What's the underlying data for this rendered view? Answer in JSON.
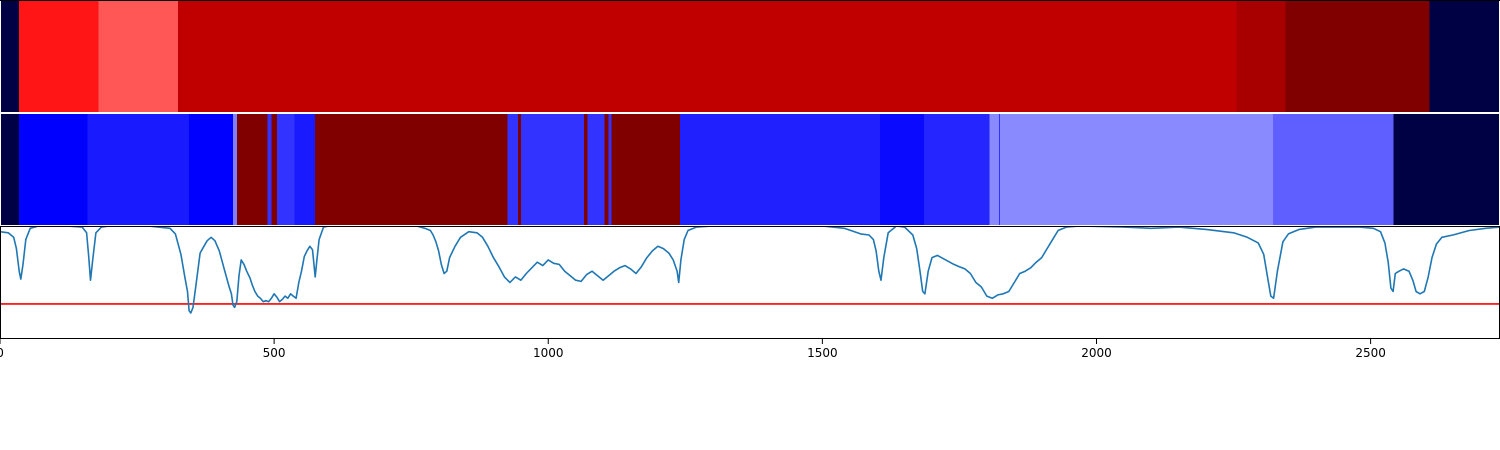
{
  "chart_data": {
    "type": "area",
    "x_range": [
      0,
      2736
    ],
    "x_ticks": [
      "0",
      "500",
      "1000",
      "1500",
      "2000",
      "2500"
    ],
    "colors": {
      "pad": "#000045",
      "threshold": "#ff0000",
      "line": "#1f77b4",
      "frame": "#000000"
    },
    "tracks": [
      {
        "segments": [
          {
            "start": 0,
            "end": 35,
            "color": "#000045"
          },
          {
            "start": 35,
            "end": 180,
            "color": "#ff1515"
          },
          {
            "start": 180,
            "end": 325,
            "color": "#ff5656"
          },
          {
            "start": 325,
            "end": 2255,
            "color": "#c00000"
          },
          {
            "start": 2255,
            "end": 2345,
            "color": "#a80000"
          },
          {
            "start": 2345,
            "end": 2607,
            "color": "#800000"
          },
          {
            "start": 2607,
            "end": 2736,
            "color": "#000045"
          }
        ]
      },
      {
        "segments": [
          {
            "start": 0,
            "end": 35,
            "color": "#000045"
          },
          {
            "start": 35,
            "end": 160,
            "color": "#0000ff"
          },
          {
            "start": 160,
            "end": 345,
            "color": "#1a1aff"
          },
          {
            "start": 345,
            "end": 425,
            "color": "#0000ff"
          },
          {
            "start": 425,
            "end": 432,
            "color": "#8080ff"
          },
          {
            "start": 432,
            "end": 488,
            "color": "#800000"
          },
          {
            "start": 488,
            "end": 495,
            "color": "#3333ff"
          },
          {
            "start": 495,
            "end": 505,
            "color": "#800000"
          },
          {
            "start": 505,
            "end": 537,
            "color": "#3333ff"
          },
          {
            "start": 537,
            "end": 575,
            "color": "#1a1aff"
          },
          {
            "start": 575,
            "end": 926,
            "color": "#800000"
          },
          {
            "start": 926,
            "end": 945,
            "color": "#3333ff"
          },
          {
            "start": 945,
            "end": 950,
            "color": "#800000"
          },
          {
            "start": 950,
            "end": 1065,
            "color": "#3333ff"
          },
          {
            "start": 1065,
            "end": 1072,
            "color": "#800000"
          },
          {
            "start": 1072,
            "end": 1103,
            "color": "#3333ff"
          },
          {
            "start": 1103,
            "end": 1110,
            "color": "#800000"
          },
          {
            "start": 1110,
            "end": 1115,
            "color": "#3333ff"
          },
          {
            "start": 1115,
            "end": 1240,
            "color": "#800000"
          },
          {
            "start": 1240,
            "end": 1605,
            "color": "#2020ff"
          },
          {
            "start": 1605,
            "end": 1685,
            "color": "#0a0aff"
          },
          {
            "start": 1685,
            "end": 1805,
            "color": "#2525ff"
          },
          {
            "start": 1805,
            "end": 1822,
            "color": "#8a8aff"
          },
          {
            "start": 1822,
            "end": 1824,
            "color": "#3333ff"
          },
          {
            "start": 1824,
            "end": 2322,
            "color": "#8a8aff"
          },
          {
            "start": 2322,
            "end": 2542,
            "color": "#5f5fff"
          },
          {
            "start": 2542,
            "end": 2736,
            "color": "#000045"
          }
        ]
      }
    ],
    "signal": {
      "y_range": [
        0,
        1
      ],
      "threshold": 0.31,
      "points": [
        [
          0,
          0.95
        ],
        [
          15,
          0.94
        ],
        [
          25,
          0.9
        ],
        [
          30,
          0.8
        ],
        [
          35,
          0.6
        ],
        [
          38,
          0.53
        ],
        [
          42,
          0.66
        ],
        [
          47,
          0.88
        ],
        [
          55,
          0.98
        ],
        [
          70,
          1.0
        ],
        [
          120,
          1.0
        ],
        [
          150,
          0.99
        ],
        [
          158,
          0.94
        ],
        [
          162,
          0.72
        ],
        [
          165,
          0.52
        ],
        [
          169,
          0.7
        ],
        [
          175,
          0.94
        ],
        [
          185,
          0.99
        ],
        [
          200,
          1.0
        ],
        [
          270,
          1.0
        ],
        [
          310,
          0.98
        ],
        [
          320,
          0.93
        ],
        [
          330,
          0.75
        ],
        [
          337,
          0.55
        ],
        [
          342,
          0.42
        ],
        [
          345,
          0.25
        ],
        [
          348,
          0.23
        ],
        [
          352,
          0.28
        ],
        [
          358,
          0.5
        ],
        [
          365,
          0.76
        ],
        [
          372,
          0.82
        ],
        [
          378,
          0.87
        ],
        [
          385,
          0.9
        ],
        [
          392,
          0.87
        ],
        [
          400,
          0.78
        ],
        [
          410,
          0.6
        ],
        [
          418,
          0.46
        ],
        [
          422,
          0.4
        ],
        [
          425,
          0.3
        ],
        [
          428,
          0.28
        ],
        [
          432,
          0.33
        ],
        [
          436,
          0.56
        ],
        [
          440,
          0.7
        ],
        [
          445,
          0.66
        ],
        [
          450,
          0.6
        ],
        [
          456,
          0.54
        ],
        [
          460,
          0.48
        ],
        [
          465,
          0.42
        ],
        [
          470,
          0.38
        ],
        [
          475,
          0.36
        ],
        [
          480,
          0.33
        ],
        [
          485,
          0.34
        ],
        [
          490,
          0.33
        ],
        [
          495,
          0.36
        ],
        [
          500,
          0.4
        ],
        [
          505,
          0.37
        ],
        [
          510,
          0.33
        ],
        [
          515,
          0.35
        ],
        [
          520,
          0.38
        ],
        [
          525,
          0.36
        ],
        [
          530,
          0.4
        ],
        [
          535,
          0.38
        ],
        [
          540,
          0.36
        ],
        [
          545,
          0.5
        ],
        [
          550,
          0.6
        ],
        [
          555,
          0.73
        ],
        [
          560,
          0.78
        ],
        [
          565,
          0.82
        ],
        [
          570,
          0.79
        ],
        [
          575,
          0.55
        ],
        [
          578,
          0.7
        ],
        [
          582,
          0.88
        ],
        [
          590,
          0.99
        ],
        [
          600,
          1.0
        ],
        [
          760,
          1.0
        ],
        [
          775,
          0.98
        ],
        [
          785,
          0.96
        ],
        [
          790,
          0.92
        ],
        [
          795,
          0.86
        ],
        [
          800,
          0.78
        ],
        [
          805,
          0.66
        ],
        [
          810,
          0.58
        ],
        [
          815,
          0.6
        ],
        [
          820,
          0.72
        ],
        [
          830,
          0.82
        ],
        [
          840,
          0.9
        ],
        [
          855,
          0.95
        ],
        [
          870,
          0.94
        ],
        [
          880,
          0.9
        ],
        [
          890,
          0.82
        ],
        [
          900,
          0.72
        ],
        [
          910,
          0.64
        ],
        [
          920,
          0.55
        ],
        [
          930,
          0.5
        ],
        [
          940,
          0.55
        ],
        [
          950,
          0.52
        ],
        [
          960,
          0.58
        ],
        [
          970,
          0.63
        ],
        [
          980,
          0.68
        ],
        [
          990,
          0.65
        ],
        [
          1000,
          0.7
        ],
        [
          1010,
          0.67
        ],
        [
          1020,
          0.66
        ],
        [
          1030,
          0.6
        ],
        [
          1040,
          0.56
        ],
        [
          1050,
          0.52
        ],
        [
          1060,
          0.51
        ],
        [
          1070,
          0.57
        ],
        [
          1080,
          0.6
        ],
        [
          1090,
          0.56
        ],
        [
          1100,
          0.52
        ],
        [
          1110,
          0.56
        ],
        [
          1120,
          0.6
        ],
        [
          1130,
          0.63
        ],
        [
          1140,
          0.65
        ],
        [
          1150,
          0.62
        ],
        [
          1160,
          0.58
        ],
        [
          1170,
          0.64
        ],
        [
          1180,
          0.72
        ],
        [
          1190,
          0.78
        ],
        [
          1200,
          0.82
        ],
        [
          1210,
          0.8
        ],
        [
          1220,
          0.76
        ],
        [
          1228,
          0.7
        ],
        [
          1235,
          0.6
        ],
        [
          1238,
          0.5
        ],
        [
          1242,
          0.7
        ],
        [
          1248,
          0.88
        ],
        [
          1255,
          0.96
        ],
        [
          1270,
          0.99
        ],
        [
          1300,
          1.0
        ],
        [
          1500,
          1.0
        ],
        [
          1540,
          0.98
        ],
        [
          1570,
          0.93
        ],
        [
          1585,
          0.92
        ],
        [
          1593,
          0.88
        ],
        [
          1598,
          0.78
        ],
        [
          1603,
          0.6
        ],
        [
          1607,
          0.52
        ],
        [
          1612,
          0.72
        ],
        [
          1620,
          0.94
        ],
        [
          1635,
          1.0
        ],
        [
          1650,
          0.99
        ],
        [
          1665,
          0.92
        ],
        [
          1672,
          0.8
        ],
        [
          1678,
          0.6
        ],
        [
          1683,
          0.42
        ],
        [
          1687,
          0.4
        ],
        [
          1693,
          0.6
        ],
        [
          1700,
          0.72
        ],
        [
          1710,
          0.74
        ],
        [
          1725,
          0.7
        ],
        [
          1740,
          0.66
        ],
        [
          1750,
          0.64
        ],
        [
          1760,
          0.62
        ],
        [
          1770,
          0.58
        ],
        [
          1780,
          0.5
        ],
        [
          1790,
          0.46
        ],
        [
          1800,
          0.38
        ],
        [
          1810,
          0.36
        ],
        [
          1820,
          0.39
        ],
        [
          1830,
          0.4
        ],
        [
          1840,
          0.42
        ],
        [
          1850,
          0.5
        ],
        [
          1860,
          0.58
        ],
        [
          1870,
          0.6
        ],
        [
          1880,
          0.63
        ],
        [
          1890,
          0.68
        ],
        [
          1900,
          0.72
        ],
        [
          1910,
          0.8
        ],
        [
          1920,
          0.88
        ],
        [
          1930,
          0.96
        ],
        [
          1945,
          0.99
        ],
        [
          1970,
          1.0
        ],
        [
          2050,
          0.99
        ],
        [
          2100,
          0.98
        ],
        [
          2150,
          0.99
        ],
        [
          2200,
          0.97
        ],
        [
          2250,
          0.94
        ],
        [
          2275,
          0.9
        ],
        [
          2295,
          0.85
        ],
        [
          2305,
          0.75
        ],
        [
          2312,
          0.55
        ],
        [
          2318,
          0.38
        ],
        [
          2323,
          0.36
        ],
        [
          2330,
          0.6
        ],
        [
          2340,
          0.86
        ],
        [
          2350,
          0.93
        ],
        [
          2370,
          0.97
        ],
        [
          2400,
          0.99
        ],
        [
          2480,
          0.99
        ],
        [
          2505,
          0.98
        ],
        [
          2518,
          0.95
        ],
        [
          2526,
          0.85
        ],
        [
          2532,
          0.68
        ],
        [
          2537,
          0.45
        ],
        [
          2541,
          0.42
        ],
        [
          2545,
          0.58
        ],
        [
          2552,
          0.6
        ],
        [
          2560,
          0.62
        ],
        [
          2570,
          0.6
        ],
        [
          2577,
          0.52
        ],
        [
          2583,
          0.42
        ],
        [
          2590,
          0.4
        ],
        [
          2598,
          0.42
        ],
        [
          2605,
          0.55
        ],
        [
          2612,
          0.72
        ],
        [
          2620,
          0.84
        ],
        [
          2630,
          0.9
        ],
        [
          2650,
          0.92
        ],
        [
          2680,
          0.96
        ],
        [
          2710,
          0.98
        ],
        [
          2736,
          0.99
        ]
      ]
    }
  }
}
